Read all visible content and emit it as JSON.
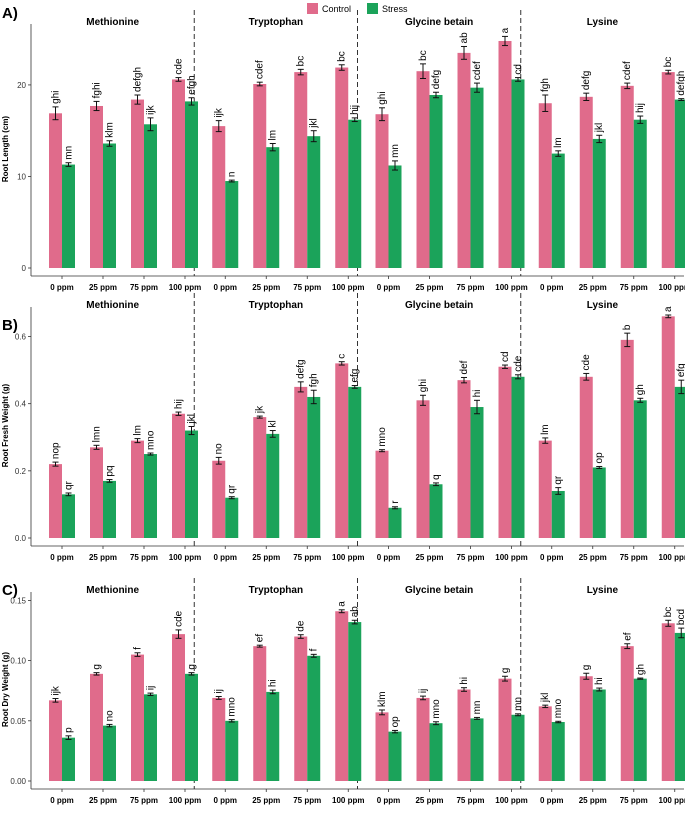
{
  "legend": [
    {
      "name": "Control",
      "color": "#e06b8b"
    },
    {
      "name": "Stress",
      "color": "#1ba35a"
    }
  ],
  "chart_data": [
    {
      "type": "bar",
      "panel": "A)",
      "ylabel": "Root Length (cm)",
      "ylim": [
        0,
        26
      ],
      "yticks": [
        0,
        10,
        20
      ],
      "facets": [
        "Methionine",
        "Tryptophan",
        "Glycine betain",
        "Lysine"
      ],
      "categories": [
        "0 ppm",
        "25 ppm",
        "75 ppm",
        "100 ppm"
      ],
      "series": [
        {
          "name": "Control",
          "color": "#e06b8b",
          "values": [
            [
              16.9,
              17.7,
              18.4,
              20.6
            ],
            [
              15.5,
              20.1,
              21.4,
              21.9
            ],
            [
              16.8,
              21.5,
              23.5,
              24.8
            ],
            [
              18.0,
              18.7,
              19.9,
              21.4
            ]
          ],
          "errors": [
            [
              0.7,
              0.5,
              0.5,
              0.2
            ],
            [
              0.6,
              0.2,
              0.3,
              0.3
            ],
            [
              0.7,
              0.8,
              0.7,
              0.5
            ],
            [
              0.9,
              0.4,
              0.3,
              0.2
            ]
          ],
          "labels": [
            [
              "ghi",
              "fghi",
              "defgh",
              "cde"
            ],
            [
              "ijk",
              "cdef",
              "bc",
              "bc"
            ],
            [
              "ghi",
              "bc",
              "ab",
              "a"
            ],
            [
              "fgh",
              "defg",
              "cdef",
              "bc"
            ]
          ]
        },
        {
          "name": "Stress",
          "color": "#1ba35a",
          "values": [
            [
              11.3,
              13.6,
              15.7,
              18.2
            ],
            [
              9.5,
              13.2,
              14.4,
              16.2
            ],
            [
              11.2,
              18.9,
              19.7,
              20.6
            ],
            [
              12.5,
              14.1,
              16.2,
              18.4
            ]
          ],
          "errors": [
            [
              0.2,
              0.3,
              0.7,
              0.4
            ],
            [
              0.1,
              0.4,
              0.6,
              0.2
            ],
            [
              0.5,
              0.3,
              0.5,
              0.2
            ],
            [
              0.3,
              0.4,
              0.4,
              0.1
            ]
          ],
          "labels": [
            [
              "mn",
              "klm",
              "ijk",
              "efgh"
            ],
            [
              "n",
              "lm",
              "jkl",
              "hij"
            ],
            [
              "mn",
              "defg",
              "cdef",
              "cd"
            ],
            [
              "lm",
              "jkl",
              "hij",
              "defgh"
            ]
          ]
        }
      ]
    },
    {
      "type": "bar",
      "panel": "B)",
      "ylabel": "Root Fresh Weight (g)",
      "ylim": [
        0,
        0.67
      ],
      "yticks": [
        0.0,
        0.2,
        0.4,
        0.6
      ],
      "facets": [
        "Methionine",
        "Tryptophan",
        "Glycine betain",
        "Lysine"
      ],
      "categories": [
        "0 ppm",
        "25 ppm",
        "75 ppm",
        "100 ppm"
      ],
      "series": [
        {
          "name": "Control",
          "color": "#e06b8b",
          "values": [
            [
              0.22,
              0.27,
              0.29,
              0.37
            ],
            [
              0.23,
              0.36,
              0.45,
              0.52
            ],
            [
              0.26,
              0.41,
              0.47,
              0.51
            ],
            [
              0.29,
              0.48,
              0.59,
              0.66
            ]
          ],
          "errors": [
            [
              0.006,
              0.006,
              0.006,
              0.005
            ],
            [
              0.01,
              0.003,
              0.015,
              0.005
            ],
            [
              0.003,
              0.015,
              0.008,
              0.005
            ],
            [
              0.008,
              0.01,
              0.02,
              0.004
            ]
          ],
          "labels": [
            [
              "nop",
              "lmn",
              "lm",
              "hij"
            ],
            [
              "no",
              "jk",
              "defg",
              "c"
            ],
            [
              "mno",
              "ghi",
              "def",
              "cd"
            ],
            [
              "lm",
              "cde",
              "b",
              "a"
            ]
          ]
        },
        {
          "name": "Stress",
          "color": "#1ba35a",
          "values": [
            [
              0.13,
              0.17,
              0.25,
              0.32
            ],
            [
              0.12,
              0.31,
              0.42,
              0.45
            ],
            [
              0.09,
              0.16,
              0.39,
              0.48
            ],
            [
              0.14,
              0.21,
              0.41,
              0.45
            ]
          ],
          "errors": [
            [
              0.004,
              0.004,
              0.003,
              0.012
            ],
            [
              0.003,
              0.01,
              0.02,
              0.004
            ],
            [
              0.003,
              0.004,
              0.02,
              0.006
            ],
            [
              0.01,
              0.003,
              0.006,
              0.02
            ]
          ],
          "labels": [
            [
              "qr",
              "pq",
              "mno",
              "jkl"
            ],
            [
              "qr",
              "kl",
              "fgh",
              "efg"
            ],
            [
              "r",
              "q",
              "hi",
              "cde"
            ],
            [
              "qr",
              "op",
              "gh",
              "efg"
            ]
          ]
        }
      ]
    },
    {
      "type": "bar",
      "panel": "C)",
      "ylabel": "Root Dry Weight (g)",
      "ylim": [
        0,
        0.152
      ],
      "yticks": [
        0.0,
        0.05,
        0.1,
        0.15
      ],
      "facets": [
        "Methionine",
        "Tryptophan",
        "Glycine betain",
        "Lysine"
      ],
      "categories": [
        "0 ppm",
        "25 ppm",
        "75 ppm",
        "100 ppm"
      ],
      "series": [
        {
          "name": "Control",
          "color": "#e06b8b",
          "values": [
            [
              0.067,
              0.089,
              0.105,
              0.122
            ],
            [
              0.069,
              0.112,
              0.12,
              0.141
            ],
            [
              0.057,
              0.069,
              0.076,
              0.085
            ],
            [
              0.062,
              0.087,
              0.112,
              0.131
            ]
          ],
          "errors": [
            [
              0.0015,
              0.001,
              0.0015,
              0.0035
            ],
            [
              0.0012,
              0.0008,
              0.0015,
              0.0012
            ],
            [
              0.002,
              0.0015,
              0.0015,
              0.002
            ],
            [
              0.001,
              0.0025,
              0.002,
              0.0025
            ]
          ],
          "labels": [
            [
              "ijk",
              "g",
              "f",
              "cde"
            ],
            [
              "ij",
              "ef",
              "de",
              "a"
            ],
            [
              "klm",
              "ij",
              "hi",
              "g"
            ],
            [
              "jkl",
              "g",
              "ef",
              "bc"
            ]
          ]
        },
        {
          "name": "Stress",
          "color": "#1ba35a",
          "values": [
            [
              0.036,
              0.046,
              0.072,
              0.089
            ],
            [
              0.05,
              0.074,
              0.104,
              0.132
            ],
            [
              0.041,
              0.048,
              0.052,
              0.055
            ],
            [
              0.049,
              0.076,
              0.085,
              0.123
            ]
          ],
          "errors": [
            [
              0.0015,
              0.001,
              0.001,
              0.001
            ],
            [
              0.001,
              0.0015,
              0.0012,
              0.0015
            ],
            [
              0.001,
              0.0012,
              0.0008,
              0.0008
            ],
            [
              0.0006,
              0.0012,
              0.0005,
              0.004
            ]
          ],
          "labels": [
            [
              "p",
              "no",
              "ij",
              "g"
            ],
            [
              "mno",
              "hi",
              "f",
              "ab"
            ],
            [
              "op",
              "mno",
              "mn",
              "mn"
            ],
            [
              "mno",
              "hi",
              "gh",
              "bcd"
            ]
          ]
        }
      ]
    }
  ]
}
